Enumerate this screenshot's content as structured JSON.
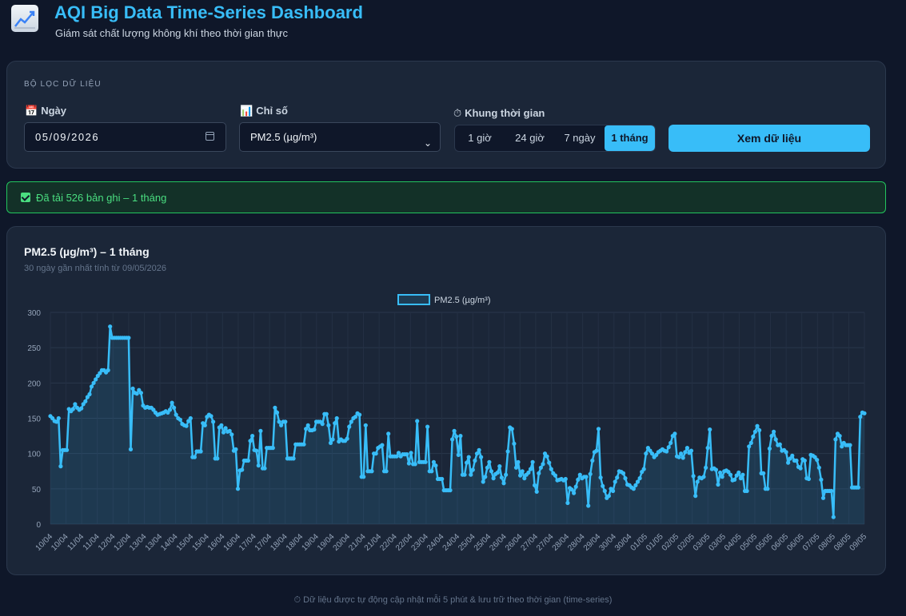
{
  "header": {
    "title": "AQI Big Data Time-Series Dashboard",
    "subtitle": "Giám sát chất lượng không khí theo thời gian thực",
    "icon": "chart-line-icon"
  },
  "filter": {
    "section_label": "BỘ LỌC DỮ LIỆU",
    "date_label": "Ngày",
    "date_value": "05/09/2026",
    "metric_label": "Chỉ số",
    "metric_value": "PM2.5 (µg/m³)",
    "range_label": "Khung thời gian",
    "ranges": [
      "1 giờ",
      "24 giờ",
      "7 ngày",
      "1 tháng"
    ],
    "active_range": "1 tháng",
    "submit_label": "Xem dữ liệu"
  },
  "status": {
    "text": "Đã tải 526 bản ghi – 1 tháng"
  },
  "chart_panel": {
    "title": "PM2.5 (µg/m³) – 1 tháng",
    "subtitle": "30 ngày gần nhất tính từ 09/05/2026"
  },
  "chart_data": {
    "type": "line",
    "title": "PM2.5 (µg/m³) – 1 tháng",
    "legend": {
      "position": "top-center",
      "entries": [
        "PM2.5 (µg/m³)"
      ]
    },
    "series": [
      {
        "name": "PM2.5 (µg/m³)",
        "color": "#38bdf8",
        "fill": true
      }
    ],
    "ylim": [
      0,
      300
    ],
    "y_ticks": [
      0,
      50,
      100,
      150,
      200,
      250,
      300
    ],
    "grid": true,
    "x_tick_labels": [
      "10/04",
      "10/04",
      "11/04",
      "11/04",
      "12/04",
      "12/04",
      "13/04",
      "13/04",
      "14/04",
      "15/04",
      "15/04",
      "16/04",
      "16/04",
      "17/04",
      "17/04",
      "18/04",
      "18/04",
      "19/04",
      "19/04",
      "20/04",
      "21/04",
      "21/04",
      "22/04",
      "22/04",
      "23/04",
      "24/04",
      "24/04",
      "25/04",
      "25/04",
      "26/04",
      "26/04",
      "27/04",
      "27/04",
      "28/04",
      "28/04",
      "29/04",
      "30/04",
      "30/04",
      "01/05",
      "01/05",
      "02/05",
      "02/05",
      "03/05",
      "03/05",
      "04/05",
      "05/05",
      "05/05",
      "06/05",
      "06/05",
      "07/05",
      "08/05",
      "08/05",
      "09/05"
    ],
    "values": [
      153,
      150,
      146,
      145,
      150,
      82,
      105,
      105,
      105,
      163,
      160,
      163,
      170,
      165,
      162,
      164,
      170,
      174,
      180,
      184,
      195,
      200,
      205,
      210,
      214,
      218,
      218,
      215,
      218,
      280,
      264,
      264,
      264,
      264,
      264,
      264,
      264,
      264,
      264,
      106,
      192,
      186,
      185,
      190,
      186,
      168,
      165,
      166,
      165,
      165,
      162,
      158,
      155,
      156,
      157,
      158,
      160,
      158,
      162,
      172,
      165,
      155,
      150,
      148,
      142,
      140,
      139,
      146,
      150,
      95,
      95,
      103,
      103,
      103,
      143,
      140,
      152,
      155,
      153,
      145,
      93,
      93,
      137,
      140,
      130,
      136,
      131,
      132,
      127,
      104,
      106,
      50,
      76,
      77,
      90,
      90,
      90,
      118,
      125,
      105,
      104,
      83,
      132,
      79,
      79,
      108,
      108,
      108,
      108,
      165,
      158,
      145,
      140,
      145,
      145,
      93,
      93,
      93,
      93,
      113,
      113,
      113,
      113,
      113,
      135,
      140,
      133,
      133,
      134,
      145,
      145,
      145,
      142,
      156,
      156,
      140,
      115,
      120,
      143,
      150,
      117,
      120,
      118,
      118,
      121,
      138,
      145,
      150,
      152,
      157,
      155,
      67,
      67,
      140,
      75,
      75,
      75,
      100,
      100,
      108,
      110,
      112,
      75,
      75,
      128,
      96,
      96,
      96,
      96,
      101,
      96,
      99,
      99,
      99,
      86,
      101,
      85,
      85,
      146,
      88,
      88,
      88,
      88,
      138,
      75,
      75,
      88,
      83,
      64,
      64,
      64,
      48,
      48,
      48,
      48,
      120,
      132,
      124,
      98,
      125,
      70,
      70,
      87,
      95,
      70,
      77,
      90,
      100,
      105,
      95,
      60,
      67,
      80,
      88,
      75,
      65,
      71,
      73,
      82,
      66,
      58,
      70,
      103,
      137,
      135,
      114,
      80,
      88,
      69,
      75,
      65,
      70,
      73,
      78,
      88,
      55,
      46,
      72,
      80,
      85,
      100,
      96,
      87,
      78,
      72,
      69,
      62,
      63,
      64,
      62,
      64,
      30,
      51,
      49,
      44,
      53,
      63,
      70,
      65,
      67,
      67,
      26,
      71,
      90,
      102,
      104,
      135,
      66,
      54,
      47,
      37,
      40,
      50,
      47,
      60,
      66,
      75,
      74,
      72,
      65,
      56,
      55,
      52,
      50,
      55,
      60,
      65,
      74,
      78,
      100,
      108,
      104,
      100,
      95,
      98,
      102,
      104,
      106,
      104,
      103,
      109,
      115,
      125,
      128,
      96,
      95,
      100,
      94,
      102,
      108,
      101,
      104,
      68,
      40,
      60,
      66,
      65,
      67,
      80,
      108,
      134,
      78,
      79,
      77,
      56,
      73,
      67,
      75,
      76,
      74,
      70,
      62,
      63,
      69,
      73,
      65,
      70,
      47,
      47,
      110,
      115,
      124,
      131,
      139,
      133,
      72,
      72,
      50,
      50,
      107,
      125,
      131,
      120,
      112,
      113,
      104,
      105,
      102,
      87,
      93,
      97,
      90,
      90,
      81,
      79,
      92,
      90,
      65,
      64,
      98,
      97,
      95,
      91,
      80,
      63,
      37,
      47,
      47,
      47,
      47,
      10,
      120,
      128,
      125,
      110,
      115,
      112,
      112,
      112,
      52,
      52,
      52,
      52,
      152,
      158,
      157
    ]
  },
  "footer": {
    "text": "⏱ Dữ liệu được tự động cập nhật mỗi 5 phút & lưu trữ theo thời gian (time-series)"
  }
}
